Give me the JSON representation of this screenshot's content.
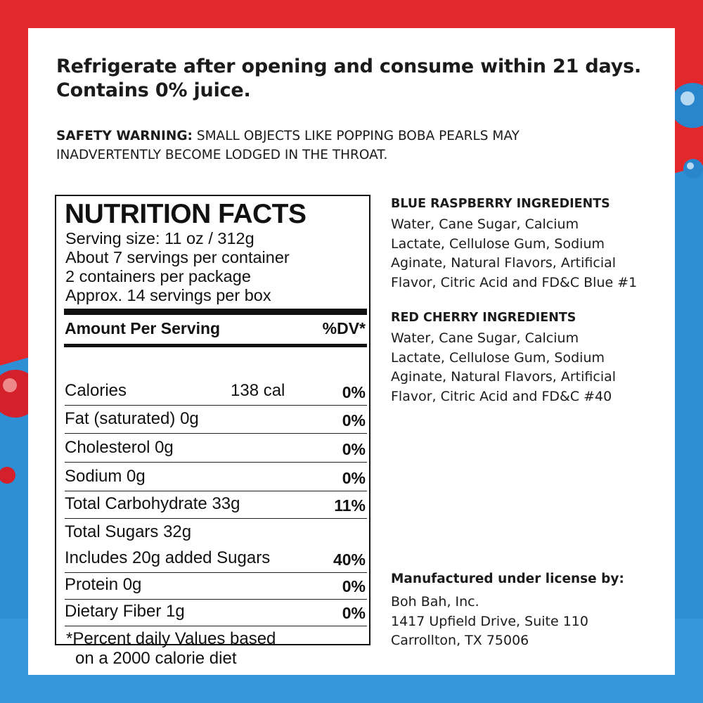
{
  "colors": {
    "red": "#e3282c",
    "blue": "#2f8fd5",
    "panel": "#ffffff",
    "text": "#1b1b1b"
  },
  "headline": {
    "line1": "Refrigerate after opening and consume within 21 days.",
    "line2": "Contains 0% juice."
  },
  "warning": {
    "label": "SAFETY WARNING:",
    "line1": "SMALL OBJECTS LIKE POPPING BOBA PEARLS MAY",
    "line2": "INADVERTENTLY BECOME LODGED IN THE THROAT."
  },
  "nutrition": {
    "title": "NUTRITION FACTS",
    "serving_lines": [
      "Serving size: 11 oz / 312g",
      "About 7 servings per container",
      "2 containers per package",
      "Approx. 14 servings per box"
    ],
    "amount_header": "Amount Per Serving",
    "dv_header": "%DV*",
    "rows": [
      {
        "label": "Calories",
        "amount": "138 cal",
        "dv": "0%"
      },
      {
        "label": "Fat (saturated)  0g",
        "amount": "",
        "dv": "0%"
      },
      {
        "label": "Cholesterol  0g",
        "amount": "",
        "dv": "0%"
      },
      {
        "label": "Sodium  0g",
        "amount": "",
        "dv": "0%"
      },
      {
        "label": "Total Carbohydrate  33g",
        "amount": "",
        "dv": "11%"
      },
      {
        "label": "Total Sugars  32g",
        "amount": "",
        "dv": ""
      },
      {
        "label": "Includes 20g added Sugars",
        "amount": "",
        "dv": "40%"
      },
      {
        "label": "Protein  0g",
        "amount": "",
        "dv": "0%"
      },
      {
        "label": "Dietary Fiber  1g",
        "amount": "",
        "dv": "0%"
      }
    ],
    "footnote_line1": "*Percent daily Values based",
    "footnote_line2": "on a 2000 calorie diet"
  },
  "blue_raspberry": {
    "heading": "BLUE RASPBERRY INGREDIENTS",
    "lines": [
      "Water, Cane Sugar, Calcium",
      "Lactate, Cellulose Gum, Sodium",
      "Aginate, Natural Flavors, Artificial",
      "Flavor, Citric Acid and FD&C Blue #1"
    ]
  },
  "red_cherry": {
    "heading": "RED CHERRY INGREDIENTS",
    "lines": [
      "Water, Cane Sugar, Calcium",
      "Lactate, Cellulose Gum, Sodium",
      "Aginate, Natural Flavors, Artificial",
      "Flavor, Citric Acid and FD&C #40"
    ]
  },
  "manufacturer": {
    "heading": "Manufactured under license by:",
    "lines": [
      "Boh Bah, Inc.",
      "1417 Upfield Drive, Suite 110",
      "Carrollton, TX 75006"
    ]
  }
}
